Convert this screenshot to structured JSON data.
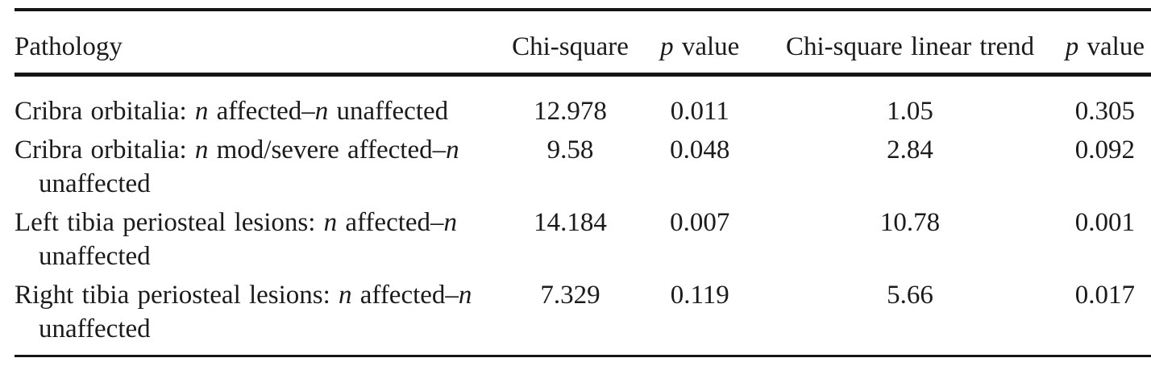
{
  "table": {
    "columns": [
      {
        "id": "pathology",
        "align": "left",
        "label": [
          {
            "t": "Pathology"
          }
        ]
      },
      {
        "id": "chi_square",
        "align": "center",
        "label": [
          {
            "t": "Chi-square"
          }
        ]
      },
      {
        "id": "p_value",
        "align": "center",
        "label": [
          {
            "t": "p",
            "i": true
          },
          {
            "t": " value"
          }
        ]
      },
      {
        "id": "chi_linear",
        "align": "center",
        "label": [
          {
            "t": "Chi-square linear trend"
          }
        ]
      },
      {
        "id": "p_value_trend",
        "align": "center",
        "label": [
          {
            "t": "p",
            "i": true
          },
          {
            "t": " value"
          }
        ]
      }
    ],
    "rows": [
      {
        "pathology_lines": [
          [
            {
              "t": "Cribra orbitalia: "
            },
            {
              "t": "n",
              "i": true
            },
            {
              "t": " affected–"
            },
            {
              "t": "n",
              "i": true
            },
            {
              "t": " unaffected"
            }
          ]
        ],
        "values": {
          "chi_square": "12.978",
          "p_value": "0.011",
          "chi_linear": "1.05",
          "p_value_trend": "0.305"
        }
      },
      {
        "pathology_lines": [
          [
            {
              "t": "Cribra orbitalia: "
            },
            {
              "t": "n",
              "i": true
            },
            {
              "t": " mod/severe affected–"
            },
            {
              "t": "n",
              "i": true
            }
          ],
          [
            {
              "t": "unaffected"
            }
          ]
        ],
        "values": {
          "chi_square": "9.58",
          "p_value": "0.048",
          "chi_linear": "2.84",
          "p_value_trend": "0.092"
        }
      },
      {
        "pathology_lines": [
          [
            {
              "t": "Left tibia periosteal lesions: "
            },
            {
              "t": "n",
              "i": true
            },
            {
              "t": " affected–"
            },
            {
              "t": "n",
              "i": true
            }
          ],
          [
            {
              "t": "unaffected"
            }
          ]
        ],
        "values": {
          "chi_square": "14.184",
          "p_value": "0.007",
          "chi_linear": "10.78",
          "p_value_trend": "0.001"
        }
      },
      {
        "pathology_lines": [
          [
            {
              "t": "Right tibia periosteal lesions: "
            },
            {
              "t": "n",
              "i": true
            },
            {
              "t": " affected–"
            },
            {
              "t": "n",
              "i": true
            }
          ],
          [
            {
              "t": "unaffected"
            }
          ]
        ],
        "values": {
          "chi_square": "7.329",
          "p_value": "0.119",
          "chi_linear": "5.66",
          "p_value_trend": "0.017"
        }
      }
    ]
  }
}
